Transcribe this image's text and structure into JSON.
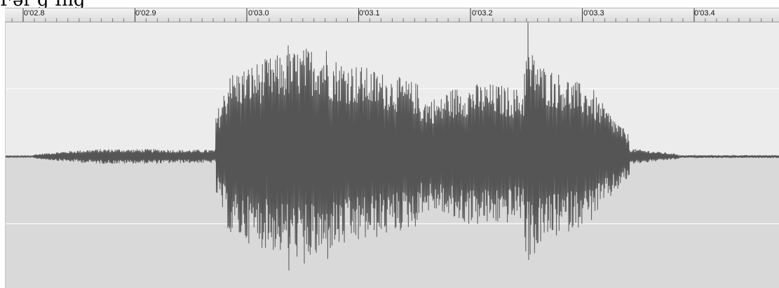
{
  "caption": "Fər'g İng",
  "timeline": {
    "tick_labels": [
      "0'02.8",
      "0'02.9",
      "0'03.0",
      "0'03.1",
      "0'03.2",
      "0'03.3",
      "0'03.4"
    ]
  },
  "waveform": {
    "start_time_s": 2.78,
    "end_time_s": 3.46,
    "upper_background": "#ececec",
    "lower_background": "#d9d9d9",
    "line_color": "#555555",
    "grid_color": "#f8f8f8"
  }
}
